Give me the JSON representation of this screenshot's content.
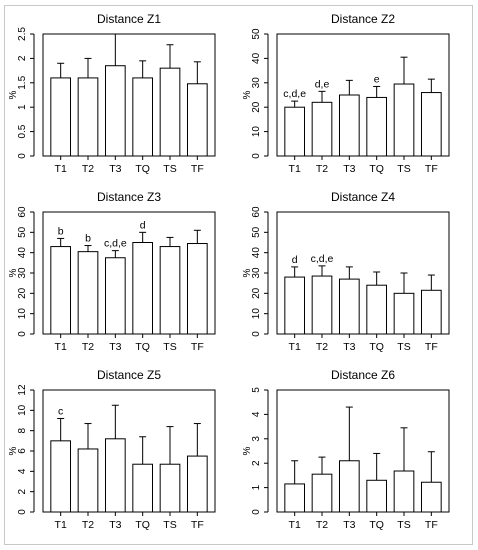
{
  "chart_data": [
    {
      "type": "bar",
      "title": "Distance Z1",
      "ylabel": "%",
      "categories": [
        "T1",
        "T2",
        "T3",
        "TQ",
        "TS",
        "TF"
      ],
      "values": [
        1.6,
        1.6,
        1.85,
        1.6,
        1.8,
        1.48
      ],
      "error_upper": [
        1.9,
        2.0,
        2.5,
        1.95,
        2.28,
        1.93
      ],
      "annotations": [
        "",
        "",
        "",
        "",
        "",
        ""
      ],
      "ylim": [
        0,
        2.5
      ],
      "yticks": [
        "0",
        "0.5",
        "1",
        "1.5",
        "2",
        "2.5"
      ],
      "grid": false
    },
    {
      "type": "bar",
      "title": "Distance Z2",
      "ylabel": "%",
      "categories": [
        "T1",
        "T2",
        "T3",
        "TQ",
        "TS",
        "TF"
      ],
      "values": [
        20,
        22,
        25,
        24,
        29.5,
        26
      ],
      "error_upper": [
        22.5,
        26.5,
        31,
        28.5,
        40.5,
        31.5
      ],
      "annotations": [
        "c,d,e",
        "d,e",
        "",
        "e",
        "",
        ""
      ],
      "ylim": [
        0,
        50
      ],
      "yticks": [
        "0",
        "10",
        "20",
        "30",
        "40",
        "50"
      ],
      "grid": false
    },
    {
      "type": "bar",
      "title": "Distance Z3",
      "ylabel": "%",
      "categories": [
        "T1",
        "T2",
        "T3",
        "TQ",
        "TS",
        "TF"
      ],
      "values": [
        43,
        40.5,
        37.5,
        45,
        43,
        44.5
      ],
      "error_upper": [
        47,
        43.5,
        41,
        50,
        47.5,
        51
      ],
      "annotations": [
        "b",
        "b",
        "c,d,e",
        "d",
        "",
        ""
      ],
      "ylim": [
        0,
        60
      ],
      "yticks": [
        "0",
        "10",
        "20",
        "30",
        "40",
        "50",
        "60"
      ],
      "grid": false
    },
    {
      "type": "bar",
      "title": "Distance Z4",
      "ylabel": "%",
      "categories": [
        "T1",
        "T2",
        "T3",
        "TQ",
        "TS",
        "TF"
      ],
      "values": [
        28,
        28.5,
        27,
        24,
        20,
        21.5
      ],
      "error_upper": [
        33,
        33.5,
        33,
        30.5,
        30,
        29
      ],
      "annotations": [
        "d",
        "c,d,e",
        "",
        "",
        "",
        ""
      ],
      "ylim": [
        0,
        60
      ],
      "yticks": [
        "0",
        "10",
        "20",
        "30",
        "40",
        "50",
        "60"
      ],
      "grid": false
    },
    {
      "type": "bar",
      "title": "Distance Z5",
      "ylabel": "%",
      "categories": [
        "T1",
        "T2",
        "T3",
        "TQ",
        "TS",
        "TF"
      ],
      "values": [
        7,
        6.2,
        7.2,
        4.7,
        4.7,
        5.5
      ],
      "error_upper": [
        9.2,
        8.7,
        10.5,
        7.4,
        8.4,
        8.7
      ],
      "annotations": [
        "c",
        "",
        "",
        "",
        "",
        ""
      ],
      "ylim": [
        0,
        12
      ],
      "yticks": [
        "0",
        "2",
        "4",
        "6",
        "8",
        "10",
        "12"
      ],
      "grid": false
    },
    {
      "type": "bar",
      "title": "Distance Z6",
      "ylabel": "%",
      "categories": [
        "T1",
        "T2",
        "T3",
        "TQ",
        "TS",
        "TF"
      ],
      "values": [
        1.15,
        1.55,
        2.1,
        1.3,
        1.68,
        1.22
      ],
      "error_upper": [
        2.1,
        2.25,
        4.3,
        2.4,
        3.45,
        2.47
      ],
      "annotations": [
        "",
        "",
        "",
        "",
        "",
        ""
      ],
      "ylim": [
        0,
        5
      ],
      "yticks": [
        "0",
        "1",
        "2",
        "3",
        "4",
        "5"
      ],
      "grid": false
    }
  ]
}
